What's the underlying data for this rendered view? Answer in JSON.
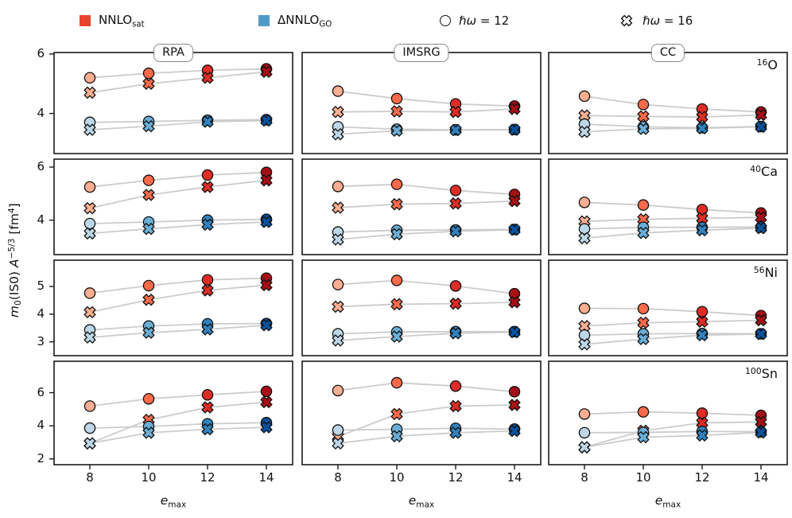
{
  "legend": {
    "items": [
      {
        "type": "square",
        "color": "#e8452f",
        "label": [
          {
            "t": "NNLO"
          },
          {
            "t": "sat",
            "sub": true
          }
        ]
      },
      {
        "type": "square",
        "color": "#4e9bc8",
        "label": [
          {
            "t": "ΔNNLO"
          },
          {
            "t": "GO",
            "sub": true
          }
        ]
      },
      {
        "type": "circle",
        "label": [
          {
            "t": "ℏω",
            "it": true
          },
          {
            "t": " = 12"
          }
        ]
      },
      {
        "type": "xmark",
        "label": [
          {
            "t": "ℏω",
            "it": true
          },
          {
            "t": " = 16"
          }
        ]
      }
    ]
  },
  "chart_data": {
    "type": "scatter",
    "title": "",
    "x": [
      8,
      10,
      12,
      14
    ],
    "xticks": [
      "8",
      "10",
      "12",
      "14"
    ],
    "xlabel_segments": [
      {
        "t": "e",
        "it": true
      },
      {
        "t": "max",
        "sub": true
      }
    ],
    "ylabel_segments": [
      {
        "t": "m",
        "it": true
      },
      {
        "t": "0",
        "sub": true
      },
      {
        "t": "(IS0) "
      },
      {
        "t": "A",
        "it": true
      },
      {
        "t": "−5/3",
        "sup": true
      },
      {
        "t": " [fm"
      },
      {
        "t": "4",
        "sup": true
      },
      {
        "t": "]"
      }
    ],
    "col_titles": [
      "RPA",
      "IMSRG",
      "CC"
    ],
    "grid": false,
    "legend_position": "top",
    "colors": {
      "red_by_emax": [
        "#fcae91",
        "#fb6a4a",
        "#de2d26",
        "#a50f15"
      ],
      "blue_by_emax": [
        "#bdd7e7",
        "#6baed6",
        "#3182bd",
        "#08519c"
      ],
      "line": "#cccccc",
      "marker_edge": "#111111",
      "axis": "#1a1a1a"
    },
    "series_defs": [
      {
        "key": "NNLOsat_hw12",
        "interaction": "NNLOsat",
        "hw": 12,
        "marker": "circle",
        "palette": "red_by_emax"
      },
      {
        "key": "NNLOsat_hw16",
        "interaction": "NNLOsat",
        "hw": 16,
        "marker": "x",
        "palette": "red_by_emax"
      },
      {
        "key": "dNNLOgo_hw12",
        "interaction": "ΔNNLOGO",
        "hw": 12,
        "marker": "circle",
        "palette": "blue_by_emax"
      },
      {
        "key": "dNNLOgo_hw16",
        "interaction": "ΔNNLOGO",
        "hw": 16,
        "marker": "x",
        "palette": "blue_by_emax"
      }
    ],
    "rows": [
      {
        "nucleus_segments": [
          {
            "t": "16",
            "sup": true
          },
          {
            "t": "O"
          }
        ],
        "nucleus": "16O",
        "yticks": [
          4,
          6
        ],
        "ylim": [
          2.65,
          6.05
        ],
        "panels": [
          {
            "method": "RPA",
            "values": {
              "NNLOsat_hw12": [
                5.2,
                5.35,
                5.45,
                5.5
              ],
              "NNLOsat_hw16": [
                4.7,
                5.0,
                5.2,
                5.4
              ],
              "dNNLOgo_hw12": [
                3.7,
                3.73,
                3.77,
                3.79
              ],
              "dNNLOgo_hw16": [
                3.45,
                3.57,
                3.72,
                3.76
              ]
            }
          },
          {
            "method": "IMSRG",
            "values": {
              "NNLOsat_hw12": [
                4.75,
                4.5,
                4.32,
                4.25
              ],
              "NNLOsat_hw16": [
                4.05,
                4.07,
                4.05,
                4.15
              ],
              "dNNLOgo_hw12": [
                3.55,
                3.47,
                3.45,
                3.46
              ],
              "dNNLOgo_hw16": [
                3.3,
                3.42,
                3.44,
                3.45
              ]
            }
          },
          {
            "method": "CC",
            "values": {
              "NNLOsat_hw12": [
                4.58,
                4.3,
                4.15,
                4.05
              ],
              "NNLOsat_hw16": [
                3.93,
                3.9,
                3.88,
                3.95
              ],
              "dNNLOgo_hw12": [
                3.64,
                3.55,
                3.52,
                3.56
              ],
              "dNNLOgo_hw16": [
                3.38,
                3.48,
                3.5,
                3.55
              ]
            }
          }
        ]
      },
      {
        "nucleus_segments": [
          {
            "t": "40",
            "sup": true
          },
          {
            "t": "Ca"
          }
        ],
        "nucleus": "40Ca",
        "yticks": [
          4,
          6
        ],
        "ylim": [
          2.7,
          6.3
        ],
        "panels": [
          {
            "method": "RPA",
            "values": {
              "NNLOsat_hw12": [
                5.25,
                5.5,
                5.7,
                5.8
              ],
              "NNLOsat_hw16": [
                4.45,
                4.95,
                5.25,
                5.5
              ],
              "dNNLOgo_hw12": [
                3.87,
                3.93,
                4.0,
                4.03
              ],
              "dNNLOgo_hw16": [
                3.5,
                3.67,
                3.83,
                3.93
              ]
            }
          },
          {
            "method": "IMSRG",
            "values": {
              "NNLOsat_hw12": [
                5.27,
                5.35,
                5.12,
                4.97
              ],
              "NNLOsat_hw16": [
                4.47,
                4.6,
                4.63,
                4.72
              ],
              "dNNLOgo_hw12": [
                3.55,
                3.62,
                3.63,
                3.65
              ],
              "dNNLOgo_hw16": [
                3.27,
                3.47,
                3.58,
                3.64
              ]
            }
          },
          {
            "method": "CC",
            "values": {
              "NNLOsat_hw12": [
                4.67,
                4.57,
                4.4,
                4.27
              ],
              "NNLOsat_hw16": [
                3.95,
                4.03,
                4.07,
                4.1
              ],
              "dNNLOgo_hw12": [
                3.67,
                3.73,
                3.73,
                3.74
              ],
              "dNNLOgo_hw16": [
                3.32,
                3.52,
                3.62,
                3.7
              ]
            }
          }
        ]
      },
      {
        "nucleus_segments": [
          {
            "t": "56",
            "sup": true
          },
          {
            "t": "Ni"
          }
        ],
        "nucleus": "56Ni",
        "yticks": [
          3,
          4,
          5
        ],
        "ylim": [
          2.5,
          5.95
        ],
        "panels": [
          {
            "method": "RPA",
            "values": {
              "NNLOsat_hw12": [
                4.76,
                5.03,
                5.24,
                5.3
              ],
              "NNLOsat_hw16": [
                4.07,
                4.52,
                4.86,
                5.05
              ],
              "dNNLOgo_hw12": [
                3.43,
                3.57,
                3.65,
                3.66
              ],
              "dNNLOgo_hw16": [
                3.16,
                3.33,
                3.45,
                3.6
              ]
            }
          },
          {
            "method": "IMSRG",
            "values": {
              "NNLOsat_hw12": [
                5.07,
                5.22,
                5.02,
                4.74
              ],
              "NNLOsat_hw16": [
                4.27,
                4.36,
                4.38,
                4.43
              ],
              "dNNLOgo_hw12": [
                3.29,
                3.36,
                3.37,
                3.37
              ],
              "dNNLOgo_hw16": [
                3.05,
                3.19,
                3.31,
                3.35
              ]
            }
          },
          {
            "method": "CC",
            "values": {
              "NNLOsat_hw12": [
                4.21,
                4.2,
                4.09,
                3.95
              ],
              "NNLOsat_hw16": [
                3.57,
                3.69,
                3.73,
                3.78
              ],
              "dNNLOgo_hw12": [
                3.24,
                3.29,
                3.3,
                3.29
              ],
              "dNNLOgo_hw16": [
                2.91,
                3.1,
                3.24,
                3.28
              ]
            }
          }
        ]
      },
      {
        "nucleus_segments": [
          {
            "t": "100",
            "sup": true
          },
          {
            "t": "Sn"
          }
        ],
        "nucleus": "100Sn",
        "yticks": [
          2,
          4,
          6
        ],
        "ylim": [
          1.65,
          7.9
        ],
        "panels": [
          {
            "method": "RPA",
            "values": {
              "NNLOsat_hw12": [
                5.19,
                5.63,
                5.87,
                6.08
              ],
              "NNLOsat_hw16": [
                2.94,
                4.36,
                5.11,
                5.43
              ],
              "dNNLOgo_hw12": [
                3.86,
                3.96,
                4.12,
                4.19
              ],
              "dNNLOgo_hw16": [
                2.94,
                3.58,
                3.79,
                3.91
              ]
            }
          },
          {
            "method": "IMSRG",
            "values": {
              "NNLOsat_hw12": [
                6.13,
                6.6,
                6.4,
                6.06
              ],
              "NNLOsat_hw16": [
                3.34,
                4.71,
                5.19,
                5.26
              ],
              "dNNLOgo_hw12": [
                3.74,
                3.79,
                3.85,
                3.8
              ],
              "dNNLOgo_hw16": [
                2.94,
                3.37,
                3.58,
                3.69
              ]
            }
          },
          {
            "method": "CC",
            "values": {
              "NNLOsat_hw12": [
                4.71,
                4.84,
                4.76,
                4.63
              ],
              "NNLOsat_hw16": [
                2.7,
                3.7,
                4.18,
                4.23
              ],
              "dNNLOgo_hw12": [
                3.58,
                3.6,
                3.66,
                3.64
              ],
              "dNNLOgo_hw16": [
                2.7,
                3.31,
                3.42,
                3.6
              ]
            }
          }
        ]
      }
    ]
  }
}
